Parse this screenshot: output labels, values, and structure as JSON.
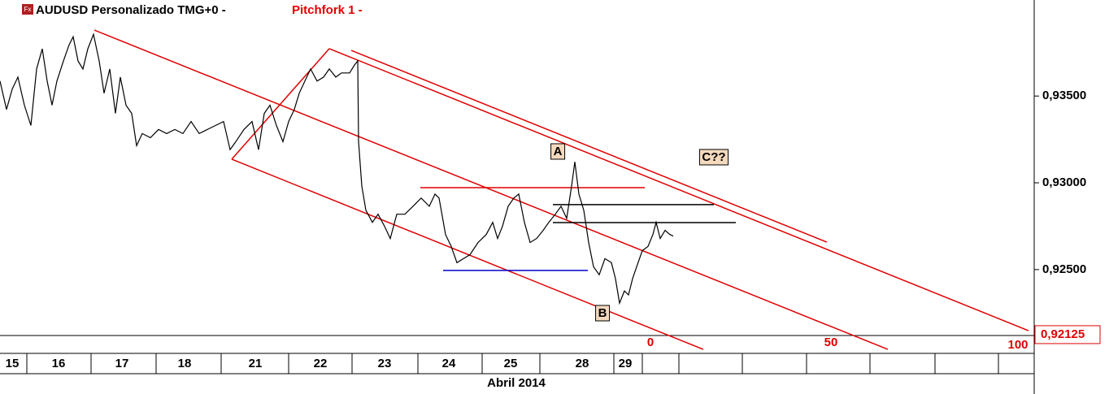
{
  "header": {
    "icon": "Fx",
    "title": "AUDUSD Personalizado TMG+0 -",
    "study": "Pitchfork 1 -"
  },
  "chart_data": {
    "type": "line",
    "color": "#000000",
    "x": [
      0,
      8,
      15,
      22,
      30,
      38,
      45,
      52,
      58,
      64,
      70,
      78,
      85,
      90,
      96,
      102,
      108,
      115,
      122,
      128,
      135,
      142,
      148,
      155,
      162,
      168,
      175,
      185,
      195,
      205,
      215,
      225,
      235,
      245,
      255,
      265,
      275,
      283,
      290,
      300,
      310,
      318,
      325,
      332,
      340,
      348,
      355,
      362,
      368,
      375,
      382,
      390,
      398,
      405,
      413,
      420,
      430,
      436,
      440,
      441,
      445,
      450,
      458,
      465,
      473,
      480,
      488,
      498,
      508,
      518,
      528,
      535,
      540,
      548,
      555,
      562,
      570,
      578,
      588,
      598,
      606,
      612,
      618,
      625,
      632,
      638,
      645,
      652,
      660,
      668,
      675,
      683,
      690,
      697,
      703,
      707,
      712,
      718,
      724,
      730,
      737,
      744,
      752,
      757,
      762,
      768,
      773,
      778,
      783,
      790,
      797,
      803,
      807,
      812,
      818,
      824,
      828
    ],
    "values": [
      0.93586,
      0.93423,
      0.9354,
      0.93609,
      0.93447,
      0.9333,
      0.93656,
      0.93772,
      0.93586,
      0.93447,
      0.93586,
      0.93702,
      0.93795,
      0.93842,
      0.93702,
      0.93656,
      0.93772,
      0.93856,
      0.93702,
      0.93516,
      0.93656,
      0.934,
      0.93609,
      0.93447,
      0.934,
      0.93214,
      0.93284,
      0.9326,
      0.93307,
      0.93284,
      0.93307,
      0.93284,
      0.93353,
      0.93284,
      0.93307,
      0.9333,
      0.93353,
      0.93191,
      0.93237,
      0.93307,
      0.93353,
      0.93191,
      0.934,
      0.93447,
      0.9333,
      0.93237,
      0.93353,
      0.93423,
      0.93516,
      0.93586,
      0.93656,
      0.93586,
      0.93609,
      0.93656,
      0.93609,
      0.93633,
      0.93633,
      0.93679,
      0.93702,
      0.93237,
      0.92981,
      0.92842,
      0.92772,
      0.92819,
      0.92749,
      0.92679,
      0.92819,
      0.92819,
      0.92865,
      0.92912,
      0.92865,
      0.92935,
      0.92912,
      0.92702,
      0.92633,
      0.9254,
      0.92563,
      0.92586,
      0.92656,
      0.92702,
      0.92772,
      0.92679,
      0.92749,
      0.92865,
      0.92912,
      0.92935,
      0.92772,
      0.92656,
      0.92679,
      0.92726,
      0.92772,
      0.92819,
      0.92865,
      0.92795,
      0.92981,
      0.93121,
      0.92935,
      0.92842,
      0.92656,
      0.92516,
      0.9247,
      0.92563,
      0.9254,
      0.92447,
      0.92307,
      0.92377,
      0.92354,
      0.92447,
      0.92516,
      0.92609,
      0.92633,
      0.92702,
      0.92772,
      0.92679,
      0.92726,
      0.92702,
      0.92693
    ],
    "xlim": [
      0,
      1272
    ],
    "ylim": [
      0.9212,
      0.9403
    ],
    "yticks": [
      {
        "value": 0.935,
        "label": "0,93500"
      },
      {
        "value": 0.93,
        "label": "0,93000"
      },
      {
        "value": 0.925,
        "label": "0,92500"
      }
    ],
    "xticks": [
      {
        "value": 15,
        "label": "15"
      },
      {
        "value": 72,
        "label": "16"
      },
      {
        "value": 150,
        "label": "17"
      },
      {
        "value": 227,
        "label": "18"
      },
      {
        "value": 314,
        "label": "21"
      },
      {
        "value": 394,
        "label": "22"
      },
      {
        "value": 473,
        "label": "23"
      },
      {
        "value": 552,
        "label": "24"
      },
      {
        "value": 628,
        "label": "25"
      },
      {
        "value": 716,
        "label": "28"
      },
      {
        "value": 769,
        "label": "29"
      }
    ],
    "xgrid": [
      33,
      112,
      192,
      272,
      355,
      433,
      514,
      593,
      664,
      755,
      790,
      835,
      913,
      992,
      1070,
      1150,
      1228
    ],
    "xlabel": "Abril 2014",
    "last_price": {
      "value": 0.92125,
      "label": "0,92125"
    },
    "lines": [
      {
        "color": "#e00000",
        "x": [
          116,
          1092
        ],
        "y": [
          0.9388,
          0.9204
        ]
      },
      {
        "color": "#e00000",
        "x": [
          405,
          1265
        ],
        "y": [
          0.93773,
          0.92148
        ]
      },
      {
        "color": "#e00000",
        "x": [
          285,
          865
        ],
        "y": [
          0.93136,
          0.9204
        ]
      },
      {
        "color": "#e00000",
        "x": [
          285,
          405
        ],
        "y": [
          0.93136,
          0.93773
        ]
      },
      {
        "color": "#e00000",
        "x": [
          432,
          1017
        ],
        "y": [
          0.93763,
          0.92658
        ]
      },
      {
        "color": "#e00000",
        "x": [
          517,
          793
        ],
        "y": [
          0.92972,
          0.92972
        ]
      },
      {
        "color": "#000000",
        "x": [
          680,
          878
        ],
        "y": [
          0.92874,
          0.92874
        ]
      },
      {
        "color": "#000000",
        "x": [
          680,
          905
        ],
        "y": [
          0.92771,
          0.92771
        ]
      },
      {
        "color": "#0000cc",
        "x": [
          545,
          723
        ],
        "y": [
          0.92495,
          0.92495
        ]
      }
    ],
    "labels": [
      "A",
      "B",
      "C??"
    ],
    "fib_levels": [
      0,
      50,
      100
    ]
  }
}
